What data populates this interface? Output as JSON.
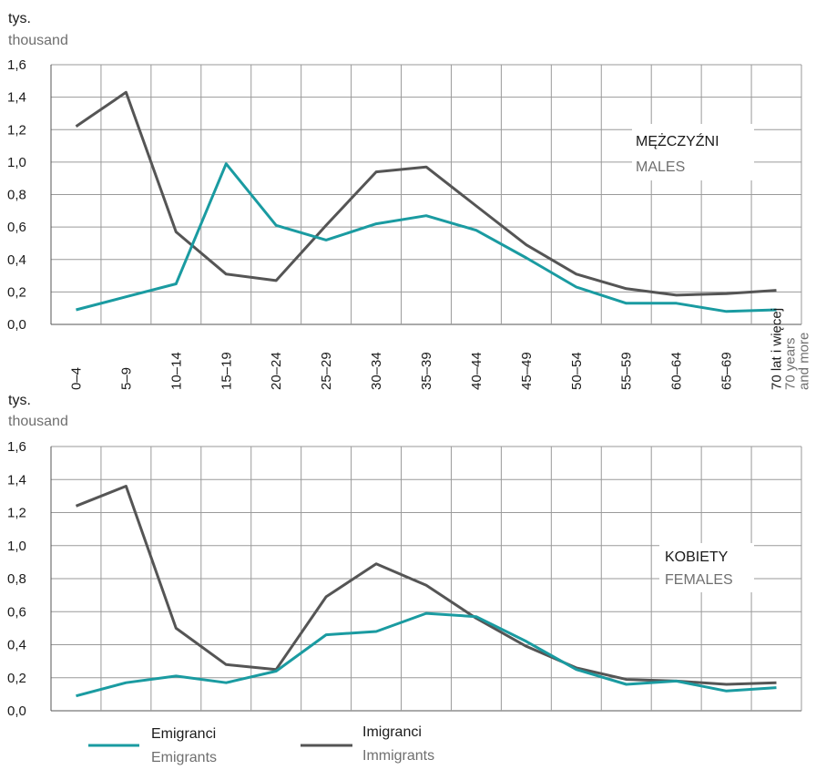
{
  "colors": {
    "emigrants": "#1a9ba1",
    "immigrants": "#555555",
    "grid": "#9a9a9a"
  },
  "categories": [
    "0–4",
    "5–9",
    "10–14",
    "15–19",
    "20–24",
    "25–29",
    "30–34",
    "35–39",
    "40–44",
    "45–49",
    "50–54",
    "55–59",
    "60–64",
    "65–69",
    "70 lat i więcej"
  ],
  "last_category_en": [
    "70 years",
    "and more"
  ],
  "legend": {
    "emigrants_pl": "Emigranci",
    "emigrants_en": "Emigrants",
    "immigrants_pl": "Imigranci",
    "immigrants_en": "Immigrants"
  },
  "chart_data": [
    {
      "type": "line",
      "title": "MĘŻCZYŹNI",
      "subtitle": "MALES",
      "ylabel": "tys.",
      "ylabel_en": "thousand",
      "yticks": [
        "0,0",
        "0,2",
        "0,4",
        "0,6",
        "0,8",
        "1,0",
        "1,2",
        "1,4",
        "1,6"
      ],
      "ylim": [
        0,
        1.6
      ],
      "categories": [
        "0–4",
        "5–9",
        "10–14",
        "15–19",
        "20–24",
        "25–29",
        "30–34",
        "35–39",
        "40–44",
        "45–49",
        "50–54",
        "55–59",
        "60–64",
        "65–69",
        "70 lat i więcej"
      ],
      "series": [
        {
          "name": "Emigranci",
          "values": [
            0.09,
            0.17,
            0.25,
            0.99,
            0.61,
            0.52,
            0.62,
            0.67,
            0.58,
            0.41,
            0.23,
            0.13,
            0.13,
            0.08,
            0.09
          ]
        },
        {
          "name": "Imigranci",
          "values": [
            1.22,
            1.43,
            0.57,
            0.31,
            0.27,
            0.61,
            0.94,
            0.97,
            0.73,
            0.49,
            0.31,
            0.22,
            0.18,
            0.19,
            0.21
          ]
        }
      ]
    },
    {
      "type": "line",
      "title": "KOBIETY",
      "subtitle": "FEMALES",
      "ylabel": "tys.",
      "ylabel_en": "thousand",
      "yticks": [
        "0,0",
        "0,2",
        "0,4",
        "0,6",
        "0,8",
        "1,0",
        "1,2",
        "1,4",
        "1,6"
      ],
      "ylim": [
        0,
        1.6
      ],
      "categories": [
        "0–4",
        "5–9",
        "10–14",
        "15–19",
        "20–24",
        "25–29",
        "30–34",
        "35–39",
        "40–44",
        "45–49",
        "50–54",
        "55–59",
        "60–64",
        "65–69",
        "70 lat i więcej"
      ],
      "series": [
        {
          "name": "Emigranci",
          "values": [
            0.09,
            0.17,
            0.21,
            0.17,
            0.24,
            0.46,
            0.48,
            0.59,
            0.57,
            0.42,
            0.25,
            0.16,
            0.18,
            0.12,
            0.14
          ]
        },
        {
          "name": "Imigranci",
          "values": [
            1.24,
            1.36,
            0.5,
            0.28,
            0.25,
            0.69,
            0.89,
            0.76,
            0.56,
            0.39,
            0.26,
            0.19,
            0.18,
            0.16,
            0.17
          ]
        }
      ]
    }
  ]
}
